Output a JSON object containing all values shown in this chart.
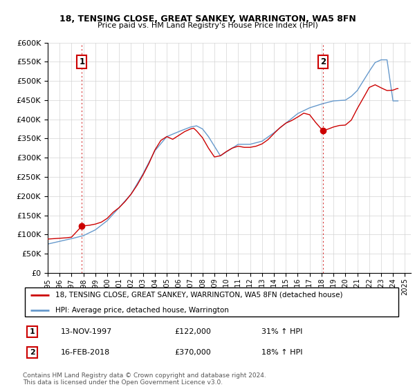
{
  "title": "18, TENSING CLOSE, GREAT SANKEY, WARRINGTON, WA5 8FN",
  "subtitle": "Price paid vs. HM Land Registry's House Price Index (HPI)",
  "legend_label_red": "18, TENSING CLOSE, GREAT SANKEY, WARRINGTON, WA5 8FN (detached house)",
  "legend_label_blue": "HPI: Average price, detached house, Warrington",
  "annotation1_date": "13-NOV-1997",
  "annotation1_price": "£122,000",
  "annotation1_hpi": "31% ↑ HPI",
  "annotation2_date": "16-FEB-2018",
  "annotation2_price": "£370,000",
  "annotation2_hpi": "18% ↑ HPI",
  "footer": "Contains HM Land Registry data © Crown copyright and database right 2024.\nThis data is licensed under the Open Government Licence v3.0.",
  "red_color": "#cc0000",
  "blue_color": "#6699cc",
  "dot1_x": 1997.87,
  "dot1_y": 122000,
  "dot2_x": 2018.12,
  "dot2_y": 370000,
  "vline1_x": 1997.87,
  "vline2_x": 2018.12,
  "ylim": [
    0,
    600000
  ],
  "xlim_start": 1995.0,
  "xlim_end": 2025.5,
  "yticks": [
    0,
    50000,
    100000,
    150000,
    200000,
    250000,
    300000,
    350000,
    400000,
    450000,
    500000,
    550000,
    600000
  ],
  "xtick_years": [
    1995,
    1996,
    1997,
    1998,
    1999,
    2000,
    2001,
    2002,
    2003,
    2004,
    2005,
    2006,
    2007,
    2008,
    2009,
    2010,
    2011,
    2012,
    2013,
    2014,
    2015,
    2016,
    2017,
    2018,
    2019,
    2020,
    2021,
    2022,
    2023,
    2024,
    2025
  ]
}
